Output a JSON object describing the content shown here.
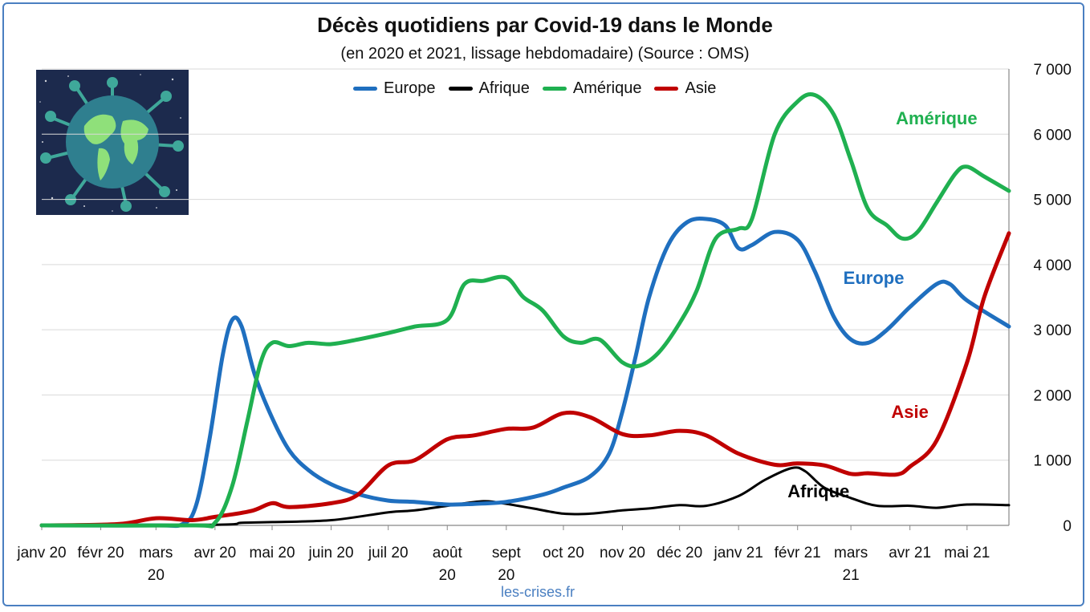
{
  "title": "Décès quotidiens par Covid-19 dans le Monde",
  "subtitle": "(en 2020 et 2021, lissage hebdomadaire) (Source : OMS)",
  "source": "les-crises.fr",
  "image_label": "globe-virus-illustration",
  "chart_data": {
    "type": "line",
    "title": "Décès quotidiens par Covid-19 dans le Monde",
    "subtitle": "(en 2020 et 2021, lissage hebdomadaire) (Source : OMS)",
    "x_start": "2020-01-01",
    "x_end": "2021-05-23",
    "x_ticks": [
      {
        "date": "2020-01-01",
        "label": [
          "janv 20"
        ]
      },
      {
        "date": "2020-02-01",
        "label": [
          "févr 20"
        ]
      },
      {
        "date": "2020-03-01",
        "label": [
          "mars",
          "20"
        ]
      },
      {
        "date": "2020-04-01",
        "label": [
          "avr 20"
        ]
      },
      {
        "date": "2020-05-01",
        "label": [
          "mai 20"
        ]
      },
      {
        "date": "2020-06-01",
        "label": [
          "juin 20"
        ]
      },
      {
        "date": "2020-07-01",
        "label": [
          "juil 20"
        ]
      },
      {
        "date": "2020-08-01",
        "label": [
          "août",
          "20"
        ]
      },
      {
        "date": "2020-09-01",
        "label": [
          "sept",
          "20"
        ]
      },
      {
        "date": "2020-10-01",
        "label": [
          "oct 20"
        ]
      },
      {
        "date": "2020-11-01",
        "label": [
          "nov 20"
        ]
      },
      {
        "date": "2020-12-01",
        "label": [
          "déc 20"
        ]
      },
      {
        "date": "2021-01-01",
        "label": [
          "janv 21"
        ]
      },
      {
        "date": "2021-02-01",
        "label": [
          "févr 21"
        ]
      },
      {
        "date": "2021-03-01",
        "label": [
          "mars",
          "21"
        ]
      },
      {
        "date": "2021-04-01",
        "label": [
          "avr 21"
        ]
      },
      {
        "date": "2021-05-01",
        "label": [
          "mai 21"
        ]
      }
    ],
    "y_ticks": [
      {
        "value": 0,
        "label": "0"
      },
      {
        "value": 1000,
        "label": "1 000"
      },
      {
        "value": 2000,
        "label": "2 000"
      },
      {
        "value": 3000,
        "label": "3 000"
      },
      {
        "value": 4000,
        "label": "4 000"
      },
      {
        "value": 5000,
        "label": "5 000"
      },
      {
        "value": 6000,
        "label": "6 000"
      },
      {
        "value": 7000,
        "label": "7 000"
      }
    ],
    "ylim": [
      0,
      7000
    ],
    "y_axis_side": "right",
    "grid": true,
    "legend_position": "top",
    "series": [
      {
        "name": "Europe",
        "color": "#1f6fbf",
        "annotation": {
          "text": "Europe",
          "date": "2021-03-13",
          "value": 3700
        },
        "points": [
          [
            "2020-01-01",
            0
          ],
          [
            "2020-03-01",
            0
          ],
          [
            "2020-03-15",
            20
          ],
          [
            "2020-03-22",
            300
          ],
          [
            "2020-03-29",
            1300
          ],
          [
            "2020-04-05",
            2600
          ],
          [
            "2020-04-10",
            3150
          ],
          [
            "2020-04-15",
            3050
          ],
          [
            "2020-04-22",
            2300
          ],
          [
            "2020-05-01",
            1650
          ],
          [
            "2020-05-10",
            1150
          ],
          [
            "2020-05-20",
            850
          ],
          [
            "2020-06-01",
            630
          ],
          [
            "2020-06-15",
            480
          ],
          [
            "2020-07-01",
            380
          ],
          [
            "2020-07-15",
            360
          ],
          [
            "2020-08-01",
            320
          ],
          [
            "2020-08-15",
            330
          ],
          [
            "2020-09-01",
            360
          ],
          [
            "2020-09-20",
            470
          ],
          [
            "2020-10-01",
            580
          ],
          [
            "2020-10-15",
            750
          ],
          [
            "2020-10-25",
            1100
          ],
          [
            "2020-11-01",
            1750
          ],
          [
            "2020-11-08",
            2600
          ],
          [
            "2020-11-15",
            3500
          ],
          [
            "2020-11-25",
            4300
          ],
          [
            "2020-12-05",
            4650
          ],
          [
            "2020-12-15",
            4700
          ],
          [
            "2020-12-25",
            4600
          ],
          [
            "2021-01-01",
            4250
          ],
          [
            "2021-01-08",
            4300
          ],
          [
            "2021-01-20",
            4500
          ],
          [
            "2021-02-01",
            4380
          ],
          [
            "2021-02-10",
            3900
          ],
          [
            "2021-02-20",
            3200
          ],
          [
            "2021-03-01",
            2850
          ],
          [
            "2021-03-10",
            2800
          ],
          [
            "2021-03-20",
            3000
          ],
          [
            "2021-04-01",
            3350
          ],
          [
            "2021-04-15",
            3700
          ],
          [
            "2021-04-22",
            3700
          ],
          [
            "2021-05-01",
            3450
          ],
          [
            "2021-05-23",
            3050
          ]
        ]
      },
      {
        "name": "Afrique",
        "color": "#000000",
        "annotation": {
          "text": "Afrique",
          "date": "2021-02-12",
          "value": 430
        },
        "points": [
          [
            "2020-01-01",
            0
          ],
          [
            "2020-04-01",
            10
          ],
          [
            "2020-04-15",
            40
          ],
          [
            "2020-05-01",
            50
          ],
          [
            "2020-06-01",
            80
          ],
          [
            "2020-07-01",
            200
          ],
          [
            "2020-07-15",
            230
          ],
          [
            "2020-08-01",
            300
          ],
          [
            "2020-08-20",
            370
          ],
          [
            "2020-09-01",
            330
          ],
          [
            "2020-09-15",
            260
          ],
          [
            "2020-10-01",
            180
          ],
          [
            "2020-10-15",
            180
          ],
          [
            "2020-11-01",
            230
          ],
          [
            "2020-11-15",
            260
          ],
          [
            "2020-12-01",
            310
          ],
          [
            "2020-12-15",
            300
          ],
          [
            "2021-01-01",
            450
          ],
          [
            "2021-01-15",
            700
          ],
          [
            "2021-01-29",
            880
          ],
          [
            "2021-02-05",
            830
          ],
          [
            "2021-02-15",
            580
          ],
          [
            "2021-03-01",
            420
          ],
          [
            "2021-03-15",
            300
          ],
          [
            "2021-04-01",
            300
          ],
          [
            "2021-04-15",
            270
          ],
          [
            "2021-05-01",
            320
          ],
          [
            "2021-05-23",
            310
          ]
        ]
      },
      {
        "name": "Amérique",
        "color": "#1fb050",
        "annotation": {
          "text": "Amérique",
          "date": "2021-04-15",
          "value": 6150
        },
        "points": [
          [
            "2020-01-01",
            0
          ],
          [
            "2020-03-20",
            0
          ],
          [
            "2020-04-01",
            40
          ],
          [
            "2020-04-10",
            600
          ],
          [
            "2020-04-18",
            1600
          ],
          [
            "2020-04-25",
            2500
          ],
          [
            "2020-05-01",
            2800
          ],
          [
            "2020-05-10",
            2750
          ],
          [
            "2020-05-20",
            2800
          ],
          [
            "2020-06-01",
            2780
          ],
          [
            "2020-06-15",
            2850
          ],
          [
            "2020-07-01",
            2950
          ],
          [
            "2020-07-15",
            3050
          ],
          [
            "2020-08-01",
            3150
          ],
          [
            "2020-08-10",
            3700
          ],
          [
            "2020-08-20",
            3750
          ],
          [
            "2020-09-01",
            3800
          ],
          [
            "2020-09-10",
            3500
          ],
          [
            "2020-09-20",
            3300
          ],
          [
            "2020-10-01",
            2900
          ],
          [
            "2020-10-10",
            2800
          ],
          [
            "2020-10-20",
            2850
          ],
          [
            "2020-11-01",
            2500
          ],
          [
            "2020-11-10",
            2450
          ],
          [
            "2020-11-20",
            2650
          ],
          [
            "2020-12-01",
            3100
          ],
          [
            "2020-12-10",
            3600
          ],
          [
            "2020-12-20",
            4400
          ],
          [
            "2021-01-01",
            4550
          ],
          [
            "2021-01-08",
            4700
          ],
          [
            "2021-01-20",
            6000
          ],
          [
            "2021-02-01",
            6500
          ],
          [
            "2021-02-10",
            6600
          ],
          [
            "2021-02-20",
            6300
          ],
          [
            "2021-03-01",
            5600
          ],
          [
            "2021-03-10",
            4850
          ],
          [
            "2021-03-20",
            4600
          ],
          [
            "2021-03-28",
            4400
          ],
          [
            "2021-04-05",
            4500
          ],
          [
            "2021-04-15",
            4950
          ],
          [
            "2021-04-25",
            5400
          ],
          [
            "2021-05-01",
            5500
          ],
          [
            "2021-05-10",
            5350
          ],
          [
            "2021-05-23",
            5130
          ]
        ]
      },
      {
        "name": "Asie",
        "color": "#c00000",
        "annotation": {
          "text": "Asie",
          "date": "2021-04-01",
          "value": 1650
        },
        "points": [
          [
            "2020-01-01",
            0
          ],
          [
            "2020-02-10",
            20
          ],
          [
            "2020-03-01",
            110
          ],
          [
            "2020-03-20",
            80
          ],
          [
            "2020-04-01",
            130
          ],
          [
            "2020-04-20",
            220
          ],
          [
            "2020-05-01",
            340
          ],
          [
            "2020-05-10",
            280
          ],
          [
            "2020-06-01",
            340
          ],
          [
            "2020-06-15",
            470
          ],
          [
            "2020-07-01",
            920
          ],
          [
            "2020-07-15",
            1000
          ],
          [
            "2020-08-01",
            1320
          ],
          [
            "2020-08-15",
            1380
          ],
          [
            "2020-09-01",
            1480
          ],
          [
            "2020-09-15",
            1500
          ],
          [
            "2020-10-01",
            1720
          ],
          [
            "2020-10-15",
            1660
          ],
          [
            "2020-11-01",
            1400
          ],
          [
            "2020-11-15",
            1380
          ],
          [
            "2020-12-01",
            1450
          ],
          [
            "2020-12-15",
            1380
          ],
          [
            "2021-01-01",
            1100
          ],
          [
            "2021-01-20",
            930
          ],
          [
            "2021-02-01",
            950
          ],
          [
            "2021-02-15",
            920
          ],
          [
            "2021-03-01",
            790
          ],
          [
            "2021-03-10",
            800
          ],
          [
            "2021-03-25",
            780
          ],
          [
            "2021-04-01",
            900
          ],
          [
            "2021-04-15",
            1300
          ],
          [
            "2021-05-01",
            2500
          ],
          [
            "2021-05-10",
            3500
          ],
          [
            "2021-05-23",
            4480
          ]
        ]
      }
    ]
  }
}
